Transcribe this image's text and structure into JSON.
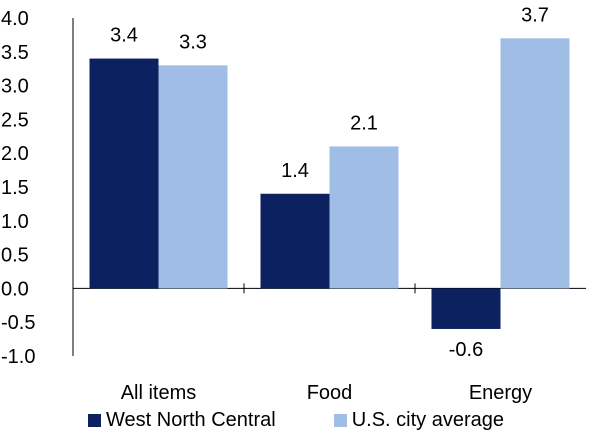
{
  "chart_data": {
    "type": "bar",
    "categories": [
      "All items",
      "Food",
      "Energy"
    ],
    "series": [
      {
        "name": "West North Central",
        "values": [
          3.4,
          1.4,
          -0.6
        ],
        "color": "#0b2160"
      },
      {
        "name": "U.S. city average",
        "values": [
          3.3,
          2.1,
          3.7
        ],
        "color": "#a0bde6"
      }
    ],
    "data_labels": [
      [
        "3.4",
        "1.4",
        "-0.6"
      ],
      [
        "3.3",
        "2.1",
        "3.7"
      ]
    ],
    "ylim": [
      -1.0,
      4.0
    ],
    "y_ticks": [
      "4.0",
      "3.5",
      "3.0",
      "2.5",
      "2.0",
      "1.5",
      "1.0",
      "0.5",
      "0.0",
      "-0.5",
      "-1.0"
    ],
    "y_tick_values": [
      4.0,
      3.5,
      3.0,
      2.5,
      2.0,
      1.5,
      1.0,
      0.5,
      0.0,
      -0.5,
      -1.0
    ],
    "grid": false,
    "legend_position": "bottom"
  }
}
